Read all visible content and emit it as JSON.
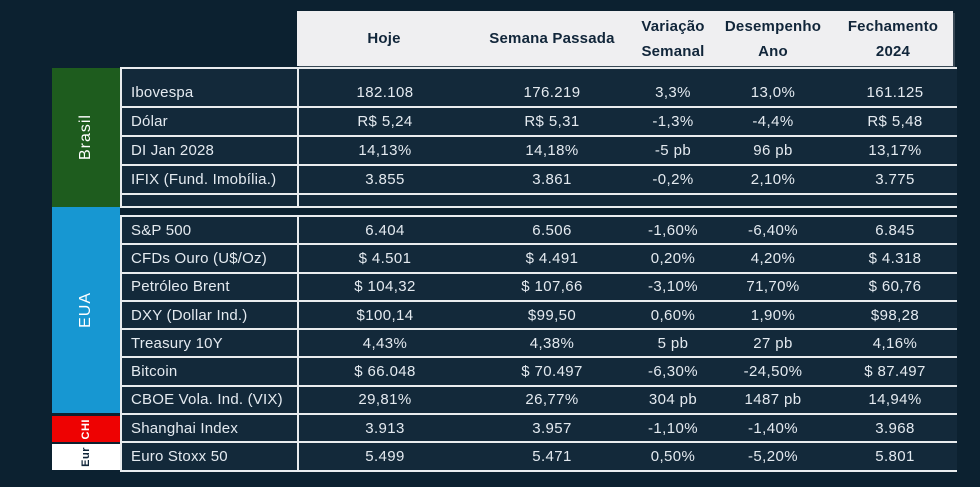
{
  "header": {
    "columns": [
      {
        "line1": "Hoje",
        "line2": ""
      },
      {
        "line1": "Semana Passada",
        "line2": ""
      },
      {
        "line1": "Variação",
        "line2": "Semanal"
      },
      {
        "line1": "Desempenho",
        "line2": "Ano"
      },
      {
        "line1": "Fechamento",
        "line2": "2024"
      }
    ]
  },
  "chart_data": {
    "type": "table",
    "columns": [
      "Hoje",
      "Semana Passada",
      "Variação Semanal",
      "Desempenho Ano",
      "Fechamento 2024"
    ],
    "sections": [
      {
        "region": "Brasil",
        "bar_color": "#1E5C1E",
        "label_color": "#FFFFFF",
        "rows": [
          {
            "label": "Ibovespa",
            "values": [
              "182.108",
              "176.219",
              "3,3%",
              "13,0%",
              "161.125"
            ]
          },
          {
            "label": "Dólar",
            "values": [
              "R$ 5,24",
              "R$ 5,31",
              "-1,3%",
              "-4,4%",
              "R$ 5,48"
            ]
          },
          {
            "label": "DI Jan 2028",
            "values": [
              "14,13%",
              "14,18%",
              "-5 pb",
              "96 pb",
              "13,17%"
            ]
          },
          {
            "label": "IFIX (Fund. Imobília.)",
            "values": [
              "3.855",
              "3.861",
              "-0,2%",
              "2,10%",
              "3.775"
            ]
          }
        ]
      },
      {
        "region": "EUA",
        "bar_color": "#1797D2",
        "label_color": "#FFFFFF",
        "rows": [
          {
            "label": "S&P 500",
            "values": [
              "6.404",
              "6.506",
              "-1,60%",
              "-6,40%",
              "6.845"
            ]
          },
          {
            "label": "CFDs Ouro (U$/Oz)",
            "values": [
              "$ 4.501",
              "$ 4.491",
              "0,20%",
              "4,20%",
              "$ 4.318"
            ]
          },
          {
            "label": "Petróleo Brent",
            "values": [
              "$ 104,32",
              "$ 107,66",
              "-3,10%",
              "71,70%",
              "$ 60,76"
            ]
          },
          {
            "label": "DXY (Dollar Ind.)",
            "values": [
              "$100,14",
              "$99,50",
              "0,60%",
              "1,90%",
              "$98,28"
            ]
          },
          {
            "label": "Treasury 10Y",
            "values": [
              "4,43%",
              "4,38%",
              "5 pb",
              "27 pb",
              "4,16%"
            ]
          },
          {
            "label": "Bitcoin",
            "values": [
              "$ 66.048",
              "$ 70.497",
              "-6,30%",
              "-24,50%",
              "$ 87.497"
            ]
          },
          {
            "label": "CBOE Vola. Ind. (VIX)",
            "values": [
              "29,81%",
              "26,77%",
              "304 pb",
              "1487 pb",
              "14,94%"
            ]
          }
        ]
      },
      {
        "region": "CHI",
        "bar_color": "#EE0202",
        "label_color": "#FFFFFF",
        "rows": [
          {
            "label": "Shanghai Index",
            "values": [
              "3.913",
              "3.957",
              "-1,10%",
              "-1,40%",
              "3.968"
            ]
          }
        ]
      },
      {
        "region": "Eur",
        "bar_color": "#FFFFFF",
        "label_color": "#12273B",
        "rows": [
          {
            "label": "Euro Stoxx 50",
            "values": [
              "5.499",
              "5.471",
              "0,50%",
              "-5,20%",
              "5.801"
            ]
          }
        ]
      }
    ]
  },
  "colors": {
    "background": "#0C2130",
    "cell_background": "#13293A",
    "border": "#E9ECEE",
    "header_background": "#EFEFF1",
    "header_text": "#11263A",
    "body_text": "#E4EAF0",
    "brasil_green": "#1E5C1E",
    "eua_blue": "#1797D2",
    "chi_red": "#EE0202",
    "eur_white": "#FFFFFF"
  }
}
